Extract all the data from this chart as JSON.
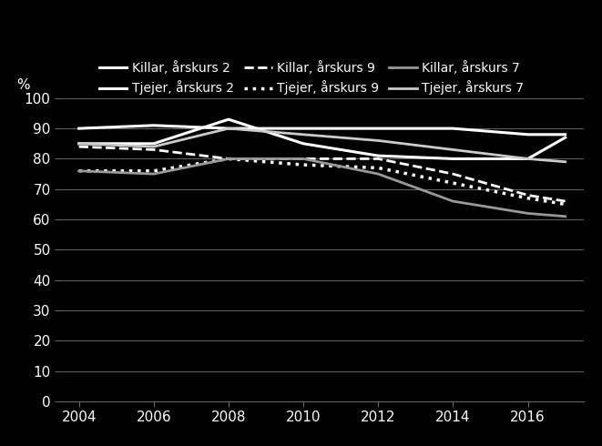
{
  "x": [
    2004,
    2006,
    2008,
    2010,
    2012,
    2014,
    2016,
    2017
  ],
  "series": [
    {
      "label": "Killar, årskurs 2",
      "linestyle": "-",
      "linewidth": 2.2,
      "color": "#ffffff",
      "values": [
        85,
        85,
        93,
        85,
        81,
        80,
        80,
        87
      ]
    },
    {
      "label": "Tjejer, årskurs 2",
      "linestyle": "-",
      "linewidth": 2.2,
      "color": "#ffffff",
      "values": [
        90,
        91,
        90,
        90,
        90,
        90,
        88,
        88
      ]
    },
    {
      "label": "Killar, årskurs 9",
      "linestyle": "--",
      "linewidth": 2.0,
      "color": "#ffffff",
      "values": [
        84,
        83,
        80,
        80,
        80,
        75,
        68,
        66
      ]
    },
    {
      "label": "Tjejer, årskurs 9",
      "linestyle": ":",
      "linewidth": 2.5,
      "color": "#ffffff",
      "values": [
        76,
        76,
        80,
        78,
        77,
        72,
        67,
        65
      ]
    },
    {
      "label": "Killar, årskurs 7",
      "linestyle": "-",
      "linewidth": 2.0,
      "color": "#999999",
      "values": [
        76,
        75,
        80,
        80,
        75,
        66,
        62,
        61
      ]
    },
    {
      "label": "Tjejer, årskurs 7",
      "linestyle": "-",
      "linewidth": 2.0,
      "color": "#cccccc",
      "values": [
        85,
        84,
        90,
        88,
        86,
        83,
        80,
        79
      ]
    }
  ],
  "ylabel": "%",
  "ylim": [
    0,
    100
  ],
  "yticks": [
    0,
    10,
    20,
    30,
    40,
    50,
    60,
    70,
    80,
    90,
    100
  ],
  "xticks": [
    2004,
    2006,
    2008,
    2010,
    2012,
    2014,
    2016
  ],
  "background_color": "#000000",
  "text_color": "#ffffff",
  "grid_color": "#666666",
  "tick_fontsize": 11,
  "legend_fontsize": 10
}
